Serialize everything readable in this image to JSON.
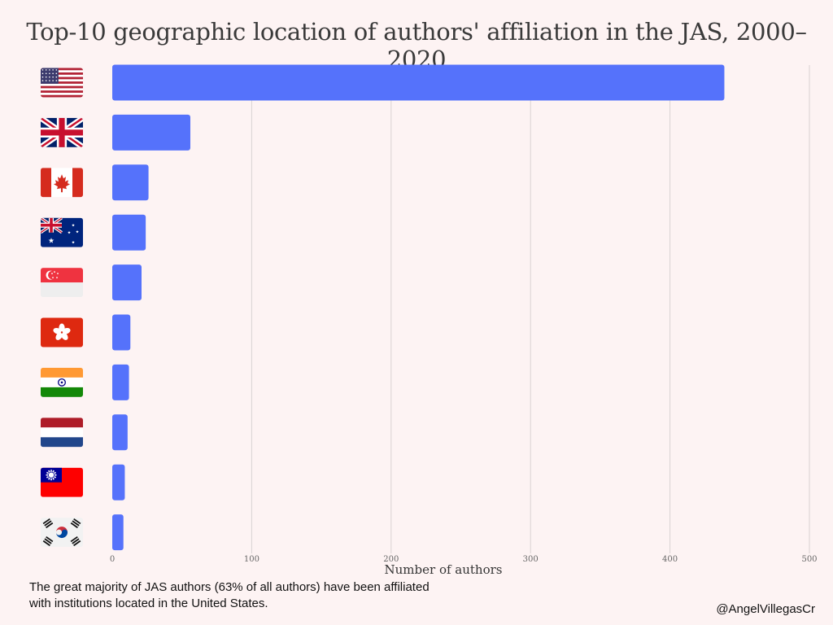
{
  "chart_data": {
    "type": "bar",
    "orientation": "horizontal",
    "title": "Top-10 geographic location of authors' affiliation in the JAS, 2000–2020",
    "xlabel": "Number of authors",
    "ylabel": "",
    "xlim": [
      0,
      500
    ],
    "xticks": [
      "0",
      "100",
      "200",
      "300",
      "400",
      "500"
    ],
    "grid": true,
    "categories": [
      "United States",
      "United Kingdom",
      "Canada",
      "Australia",
      "Singapore",
      "Hong Kong",
      "India",
      "Netherlands",
      "Taiwan",
      "South Korea"
    ],
    "category_icons": [
      "flag-usa",
      "flag-uk",
      "flag-canada",
      "flag-australia",
      "flag-singapore",
      "flag-hong-kong",
      "flag-india",
      "flag-netherlands",
      "flag-taiwan",
      "flag-south-korea"
    ],
    "values": [
      439,
      56,
      26,
      24,
      21,
      13,
      12,
      11,
      9,
      8
    ],
    "bar_color": "#5572fb"
  },
  "caption": "The great majority of JAS authors (63% of all authors) have been affiliated with institutions located in the United States.",
  "credit": "@AngelVillegasCr"
}
